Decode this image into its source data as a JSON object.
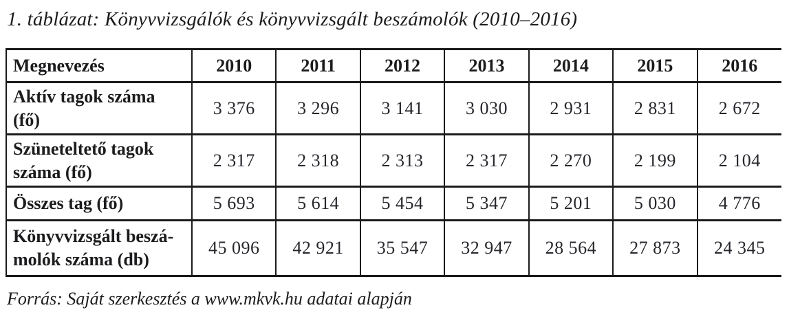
{
  "caption": "1. táblázat: Könyvvizsgálók és könyvvizsgált beszámolók (2010–2016)",
  "source_note": "Forrás: Saját szerkesztés a www.mkvk.hu adatai alapján",
  "table": {
    "header": [
      "Megnevezés",
      "2010",
      "2011",
      "2012",
      "2013",
      "2014",
      "2015",
      "2016"
    ],
    "rows": [
      {
        "label": "Aktív tagok száma\n(fő)",
        "values": [
          "3 376",
          "3 296",
          "3 141",
          "3 030",
          "2 931",
          "2 831",
          "2 672"
        ]
      },
      {
        "label": "Szüneteltető tagok\nszáma (fő)",
        "values": [
          "2 317",
          "2 318",
          "2 313",
          "2 317",
          "2 270",
          "2 199",
          "2 104"
        ]
      },
      {
        "label": "Összes tag (fő)",
        "values": [
          "5 693",
          "5 614",
          "5 454",
          "5 347",
          "5 201",
          "5 030",
          "4 776"
        ]
      },
      {
        "label": "Könyvvizsgált beszá-\nmolók száma (db)",
        "values": [
          "45 096",
          "42 921",
          "35 547",
          "32 947",
          "28 564",
          "27 873",
          "24 345"
        ]
      }
    ]
  },
  "chart_data": {
    "type": "table",
    "title": "1. táblázat: Könyvvizsgálók és könyvvizsgált beszámolók (2010–2016)",
    "categories": [
      "2010",
      "2011",
      "2012",
      "2013",
      "2014",
      "2015",
      "2016"
    ],
    "series": [
      {
        "name": "Aktív tagok száma (fő)",
        "values": [
          3376,
          3296,
          3141,
          3030,
          2931,
          2831,
          2672
        ]
      },
      {
        "name": "Szüneteltető tagok száma (fő)",
        "values": [
          2317,
          2318,
          2313,
          2317,
          2270,
          2199,
          2104
        ]
      },
      {
        "name": "Összes tag (fő)",
        "values": [
          5693,
          5614,
          5454,
          5347,
          5201,
          5030,
          4776
        ]
      },
      {
        "name": "Könyvvizsgált beszámolók száma (db)",
        "values": [
          45096,
          42921,
          35547,
          32947,
          28564,
          27873,
          24345
        ]
      }
    ]
  }
}
